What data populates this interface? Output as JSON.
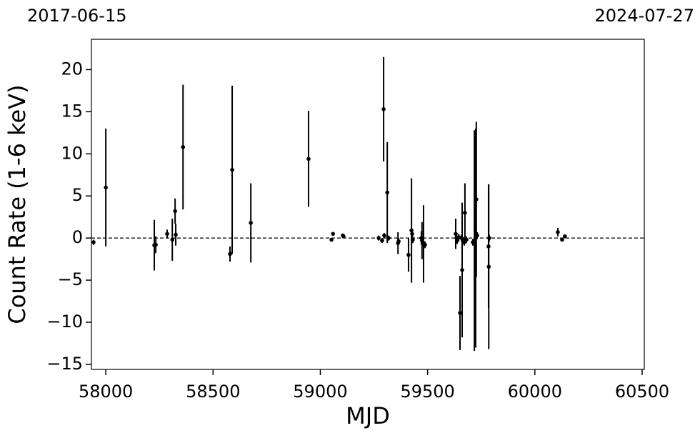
{
  "chart_data": {
    "type": "scatter",
    "xlabel": "MJD",
    "ylabel": "Count Rate (1-6 keV)",
    "top_labels": [
      "2017-06-15",
      "2024-07-27"
    ],
    "xlim": [
      57933,
      60510
    ],
    "ylim": [
      -15.6,
      23.6
    ],
    "xticks": [
      58000,
      58500,
      59000,
      59500,
      60000,
      60500
    ],
    "yticks": [
      {
        "value": -15,
        "label": "−15"
      },
      {
        "value": -10,
        "label": "−10"
      },
      {
        "value": -5,
        "label": "−5"
      },
      0,
      5,
      10,
      15,
      20
    ],
    "hline": 0,
    "series": [
      {
        "color": "#000000",
        "x": [
          57943,
          58000,
          58226,
          58233,
          58286,
          58310,
          58323,
          58326,
          58360,
          58579,
          58589,
          58676,
          58945,
          59052,
          59059,
          59105,
          59108,
          59272,
          59288,
          59295,
          59298,
          59312,
          59318,
          59362,
          59365,
          59411,
          59425,
          59428,
          59431,
          59471,
          59474,
          59481,
          59488,
          59631,
          59635,
          59638,
          59645,
          59651,
          59658,
          59661,
          59665,
          59671,
          59674,
          59681,
          59711,
          59718,
          59724,
          59727,
          59731,
          59784,
          59785,
          59787,
          60107,
          60127,
          60140
        ],
        "values": [
          -0.5,
          6.0,
          -0.85,
          -0.8,
          0.5,
          -0.2,
          3.2,
          0.4,
          10.8,
          -1.9,
          8.1,
          1.8,
          9.4,
          -0.2,
          0.5,
          0.3,
          0.2,
          0.0,
          -0.3,
          15.3,
          0.3,
          5.4,
          0.0,
          -0.6,
          -0.4,
          -2.0,
          0.9,
          0.5,
          -0.2,
          0.0,
          -0.3,
          -0.7,
          -0.8,
          0.5,
          0.0,
          -0.3,
          0.1,
          -8.9,
          0.0,
          -3.8,
          -0.3,
          -0.5,
          3.0,
          -0.2,
          -0.5,
          -0.3,
          0.0,
          4.6,
          0.3,
          -1.0,
          -3.4,
          0.0,
          0.7,
          -0.2,
          0.2
        ],
        "errors": [
          0.3,
          7.0,
          3.0,
          1.0,
          0.5,
          2.5,
          1.5,
          1.3,
          7.4,
          0.9,
          10.0,
          4.7,
          5.7,
          0.2,
          0.2,
          0.2,
          0.2,
          0.3,
          0.3,
          6.2,
          0.3,
          6.0,
          0.3,
          1.3,
          0.4,
          2.0,
          6.2,
          0.5,
          0.4,
          0.8,
          2.2,
          4.6,
          0.4,
          1.8,
          0.4,
          0.4,
          0.4,
          4.4,
          0.4,
          8.0,
          0.4,
          0.4,
          3.5,
          0.4,
          0.4,
          13.1,
          13.0,
          9.2,
          0.4,
          7.3,
          9.8,
          0.4,
          0.5,
          0.2,
          0.2
        ]
      }
    ]
  }
}
